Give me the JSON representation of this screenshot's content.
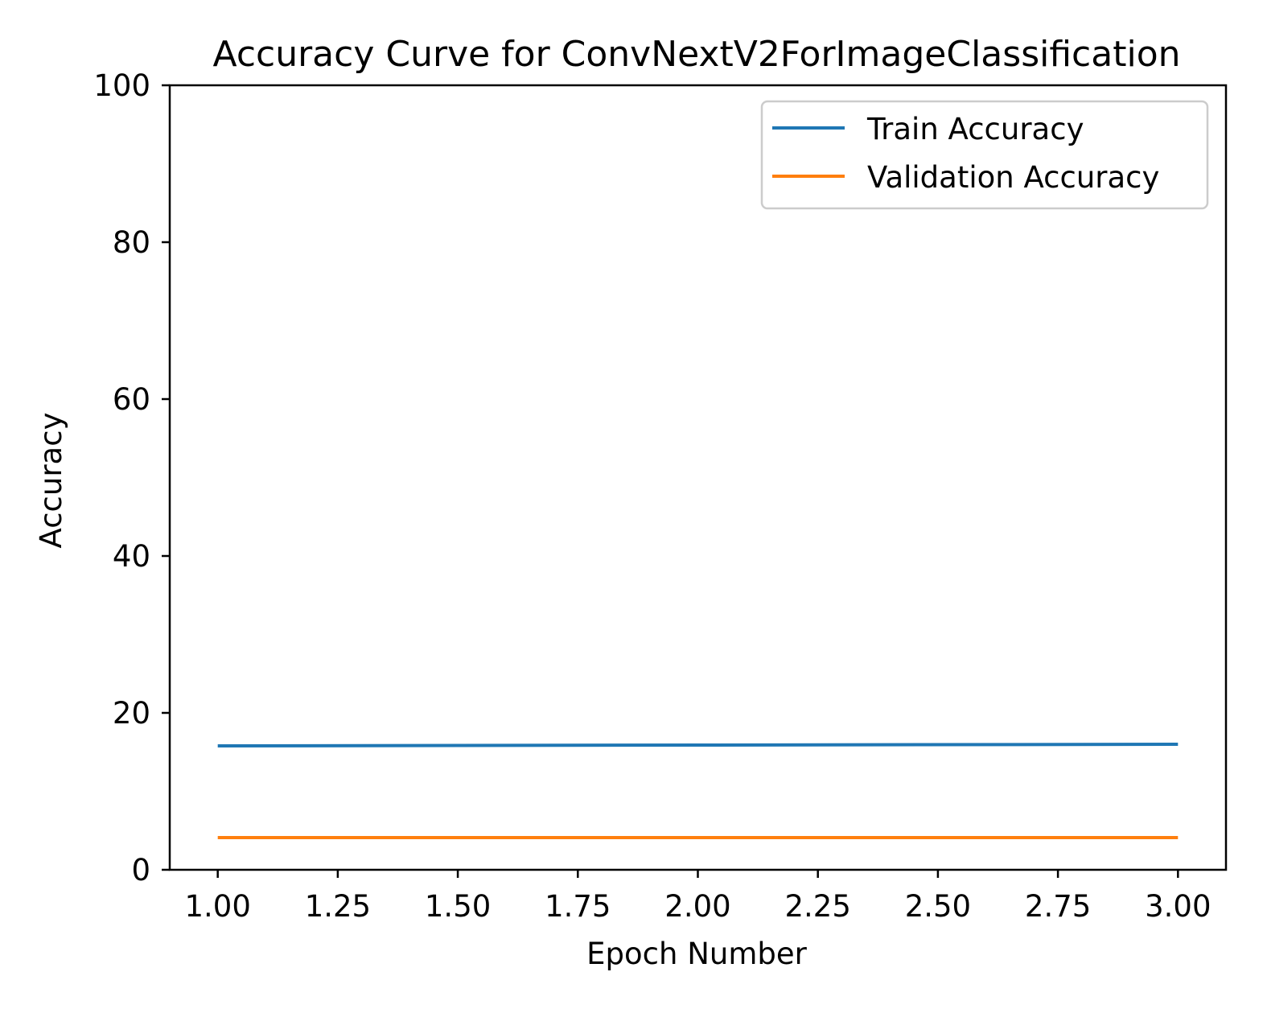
{
  "chart_data": {
    "type": "line",
    "title": "Accuracy Curve for  ConvNextV2ForImageClassification",
    "xlabel": "Epoch Number",
    "ylabel": "Accuracy",
    "xlim": [
      0.9,
      3.1
    ],
    "ylim": [
      0,
      100
    ],
    "xticks": [
      1.0,
      1.25,
      1.5,
      1.75,
      2.0,
      2.25,
      2.5,
      2.75,
      3.0
    ],
    "xtick_labels": [
      "1.00",
      "1.25",
      "1.50",
      "1.75",
      "2.00",
      "2.25",
      "2.50",
      "2.75",
      "3.00"
    ],
    "yticks": [
      0,
      20,
      40,
      60,
      80,
      100
    ],
    "ytick_labels": [
      "0",
      "20",
      "40",
      "60",
      "80",
      "100"
    ],
    "grid": false,
    "legend_position": "top-right",
    "x": [
      1,
      2,
      3
    ],
    "series": [
      {
        "name": "Train Accuracy",
        "color": "#1f77b4",
        "values": [
          15.8,
          15.9,
          16.0
        ]
      },
      {
        "name": "Validation Accuracy",
        "color": "#ff7f0e",
        "values": [
          4.1,
          4.1,
          4.1
        ]
      }
    ]
  }
}
